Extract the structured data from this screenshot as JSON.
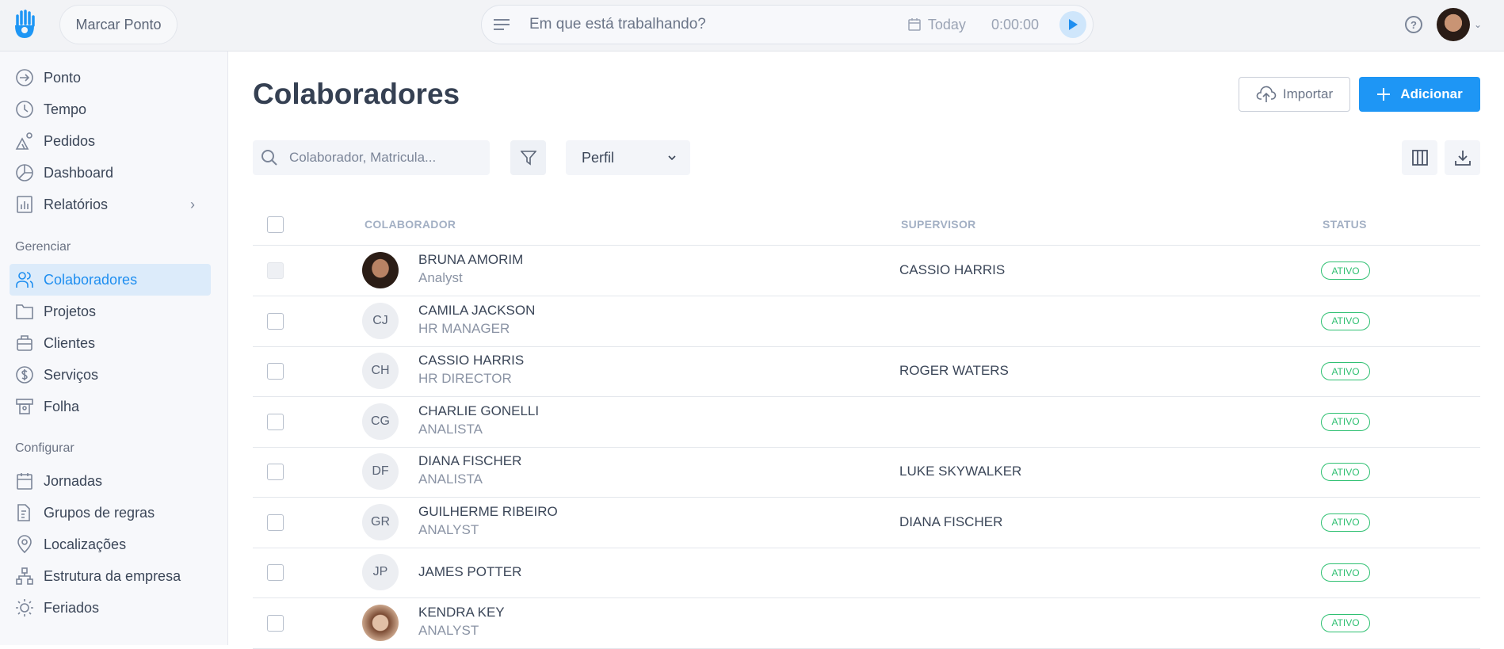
{
  "header": {
    "marcar_ponto": "Marcar Ponto",
    "task_placeholder": "Em que está trabalhando?",
    "date_label": "Today",
    "timer": "0:00:00",
    "help": "?"
  },
  "sidebar": {
    "main": [
      {
        "label": "Ponto",
        "icon": "sign-in-icon"
      },
      {
        "label": "Tempo",
        "icon": "clock-icon"
      },
      {
        "label": "Pedidos",
        "icon": "requests-icon"
      },
      {
        "label": "Dashboard",
        "icon": "pie-chart-icon"
      },
      {
        "label": "Relatórios",
        "icon": "bar-chart-icon"
      }
    ],
    "manage_title": "Gerenciar",
    "manage": [
      {
        "label": "Colaboradores",
        "icon": "users-icon",
        "active": true
      },
      {
        "label": "Projetos",
        "icon": "folder-icon"
      },
      {
        "label": "Clientes",
        "icon": "briefcase-icon"
      },
      {
        "label": "Serviços",
        "icon": "dollar-icon"
      },
      {
        "label": "Folha",
        "icon": "payroll-icon"
      }
    ],
    "config_title": "Configurar",
    "config": [
      {
        "label": "Jornadas",
        "icon": "calendar-icon"
      },
      {
        "label": "Grupos de regras",
        "icon": "rules-icon"
      },
      {
        "label": "Localizações",
        "icon": "location-icon"
      },
      {
        "label": "Estrutura da empresa",
        "icon": "org-chart-icon"
      },
      {
        "label": "Feriados",
        "icon": "sun-icon"
      }
    ]
  },
  "page": {
    "title": "Colaboradores",
    "import_label": "Importar",
    "add_label": "Adicionar",
    "search_placeholder": "Colaborador, Matricula...",
    "profile_select": "Perfil"
  },
  "table": {
    "columns": [
      "COLABORADOR",
      "SUPERVISOR",
      "STATUS"
    ],
    "rows": [
      {
        "initials": "",
        "photo": true,
        "name": "BRUNA AMORIM",
        "role": "Analyst",
        "supervisor": "CASSIO HARRIS",
        "status": "ATIVO"
      },
      {
        "initials": "CJ",
        "name": "CAMILA JACKSON",
        "role": "HR MANAGER",
        "supervisor": "",
        "status": "ATIVO"
      },
      {
        "initials": "CH",
        "name": "CASSIO HARRIS",
        "role": "HR DIRECTOR",
        "supervisor": "ROGER WATERS",
        "status": "ATIVO"
      },
      {
        "initials": "CG",
        "name": "CHARLIE GONELLI",
        "role": "ANALISTA",
        "supervisor": "",
        "status": "ATIVO"
      },
      {
        "initials": "DF",
        "name": "DIANA FISCHER",
        "role": "ANALISTA",
        "supervisor": "LUKE SKYWALKER",
        "status": "ATIVO"
      },
      {
        "initials": "GR",
        "name": "GUILHERME RIBEIRO",
        "role": "ANALYST",
        "supervisor": "DIANA FISCHER",
        "status": "ATIVO"
      },
      {
        "initials": "JP",
        "name": "JAMES POTTER",
        "role": "",
        "supervisor": "",
        "status": "ATIVO"
      },
      {
        "initials": "",
        "photo": true,
        "name": "KENDRA KEY",
        "role": "ANALYST",
        "supervisor": "",
        "status": "ATIVO"
      }
    ]
  },
  "colors": {
    "accent": "#1e96f5",
    "active_bg": "#dcebfa",
    "status_green": "#2fc072"
  }
}
